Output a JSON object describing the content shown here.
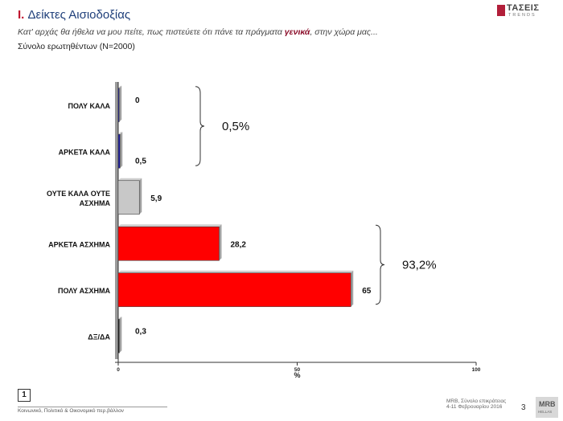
{
  "header": {
    "roman": "I.",
    "title": "Δείκτες Αισιοδοξίας",
    "question_pre": "Κατ' αρχάς θα ήθελα να μου πείτε, πως πιστεύετε ότι πάνε τα πράγματα ",
    "question_em": "γενικά",
    "question_post": ", στην χώρα μας...",
    "base": "Σύνολο ερωτηθέντων (Ν=2000)"
  },
  "logo": {
    "name": "ΤΑΣΕΙΣ",
    "tagline": "TRENDS",
    "brand_color": "#b21f3a"
  },
  "chart_data": {
    "type": "bar",
    "orientation": "horizontal",
    "categories": [
      "ΠΟΛΥ ΚΑΛΑ",
      "ΑΡΚΕΤΑ ΚΑΛΑ",
      "ΟΥΤΕ ΚΑΛΑ ΟΥΤΕ ΑΣΧΗΜΑ",
      "ΑΡΚΕΤΑ ΑΣΧΗΜΑ",
      "ΠΟΛΥ ΑΣΧΗΜΑ",
      "ΔΞ/ΔΑ"
    ],
    "category_lines": [
      [
        "ΠΟΛΥ ΚΑΛΑ"
      ],
      [
        "ΑΡΚΕΤΑ ΚΑΛΑ"
      ],
      [
        "ΟΥΤΕ ΚΑΛΑ ΟΥΤΕ",
        "ΑΣΧΗΜΑ"
      ],
      [
        "ΑΡΚΕΤΑ ΑΣΧΗΜΑ"
      ],
      [
        "ΠΟΛΥ ΑΣΧΗΜΑ"
      ],
      [
        "ΔΞ/ΔΑ"
      ]
    ],
    "values": [
      0,
      0.5,
      5.9,
      28.2,
      65,
      0.3
    ],
    "value_labels": [
      "0",
      "0,5",
      "5,9",
      "28,2",
      "65",
      "0,3"
    ],
    "colors": [
      "#1a1aa0",
      "#1a1aa0",
      "#c8c8c8",
      "#ff0000",
      "#ff0000",
      "#111111"
    ],
    "xlim": [
      0,
      100
    ],
    "xticks": [
      0,
      50,
      100
    ],
    "xlabel": "%",
    "grid": false,
    "annotations": [
      {
        "label": "0,5%",
        "categories": [
          0,
          1
        ]
      },
      {
        "label": "93,2%",
        "categories": [
          3,
          4
        ]
      }
    ]
  },
  "footer": {
    "page_box": "1",
    "left_text": "Κοινωνικό, Πολιτικό & Οικονομικό περ.βάλλον",
    "right_text_1": "MRB, Σύνολο επικράτειας",
    "right_text_2": "4-11 Φεβρουαρίου 2016",
    "page_number": "3",
    "mrb_mark": "MRB",
    "mrb_sub": "HELLAS"
  }
}
